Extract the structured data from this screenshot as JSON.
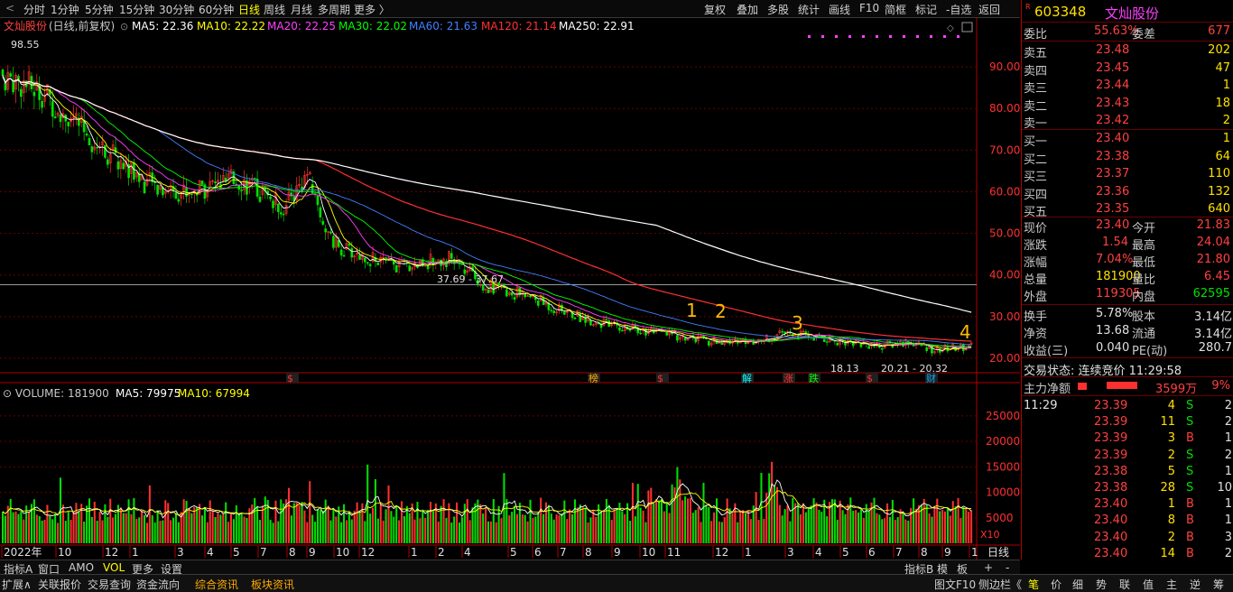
{
  "topbar": {
    "nav_left": "<",
    "periods": [
      "分时",
      "1分钟",
      "5分钟",
      "15分钟",
      "30分钟",
      "60分钟",
      "日线",
      "周线",
      "月线",
      "多周期",
      "更多 〉"
    ],
    "tools": [
      "复权",
      "叠加",
      "多股",
      "统计",
      "画线",
      "F10",
      "简框",
      "标记",
      "-自选",
      "返回"
    ]
  },
  "chart": {
    "title": "文灿股份",
    "mode": "(日线,前复权)",
    "ma_labels": [
      {
        "t": "MA5: 22.36",
        "c": "#ffffff"
      },
      {
        "t": "MA10: 22.22",
        "c": "#ffff00"
      },
      {
        "t": "MA20: 22.25",
        "c": "#ff40ff"
      },
      {
        "t": "MA30: 22.02",
        "c": "#00ff00"
      },
      {
        "t": "MA60: 21.63",
        "c": "#4080ff"
      },
      {
        "t": "MA120: 21.14",
        "c": "#ff3030"
      },
      {
        "t": "MA250: 22.91",
        "c": "#ffffff"
      }
    ],
    "price_ticks": [
      "90.00",
      "80.00",
      "70.00",
      "60.00",
      "50.00",
      "40.00",
      "30.00",
      "20.00"
    ],
    "high_label": "98.55",
    "low_label": "18.13",
    "range_label": "37.69 - 37.67",
    "range_label2": "20.21 - 20.32",
    "annotations": [
      "1",
      "2",
      "3",
      "4"
    ],
    "event_tags": [
      {
        "t": "$",
        "c": "#ff3030"
      },
      {
        "t": "榜",
        "c": "#ffaa00"
      },
      {
        "t": "$",
        "c": "#ff3030"
      },
      {
        "t": "解",
        "c": "#00ffff"
      },
      {
        "t": "涨",
        "c": "#ff3030"
      },
      {
        "t": "跌",
        "c": "#00ff00"
      },
      {
        "t": "$",
        "c": "#ff3030"
      },
      {
        "t": "财",
        "c": "#00aaff"
      }
    ],
    "volume_label": "VOLUME: 181900",
    "vol_ma5": "MA5: 79975",
    "vol_ma10": "MA10: 67994",
    "vol_ticks": [
      "25000",
      "20000",
      "15000",
      "10000",
      "5000"
    ],
    "vol_unit": "X10",
    "months": [
      "2022年",
      "10",
      "12",
      "1",
      "3",
      "4",
      "5",
      "7",
      "8",
      "9",
      "10",
      "12",
      "1",
      "2",
      "4",
      "5",
      "6",
      "7",
      "8",
      "9",
      "10",
      "11",
      "12",
      "1",
      "3",
      "4",
      "5",
      "6",
      "7",
      "8",
      "9",
      "1"
    ],
    "period_tag": "日线"
  },
  "quote": {
    "code": "603348",
    "name": "文灿股份",
    "ratio_label": "委比",
    "ratio": "55.63%",
    "diff_label": "委差",
    "diff": "677",
    "asks": [
      {
        "n": "卖五",
        "p": "23.48",
        "v": "202"
      },
      {
        "n": "卖四",
        "p": "23.45",
        "v": "47"
      },
      {
        "n": "卖三",
        "p": "23.44",
        "v": "1"
      },
      {
        "n": "卖二",
        "p": "23.43",
        "v": "18"
      },
      {
        "n": "卖一",
        "p": "23.42",
        "v": "2"
      }
    ],
    "bids": [
      {
        "n": "买一",
        "p": "23.40",
        "v": "1"
      },
      {
        "n": "买二",
        "p": "23.38",
        "v": "64"
      },
      {
        "n": "买三",
        "p": "23.37",
        "v": "110"
      },
      {
        "n": "买四",
        "p": "23.36",
        "v": "132"
      },
      {
        "n": "买五",
        "p": "23.35",
        "v": "640"
      }
    ],
    "stats": [
      {
        "a": "现价",
        "b": "23.40",
        "bc": "red",
        "c": "今开",
        "d": "21.83",
        "dc": "red"
      },
      {
        "a": "涨跌",
        "b": "1.54",
        "bc": "red",
        "c": "最高",
        "d": "24.04",
        "dc": "red"
      },
      {
        "a": "涨幅",
        "b": "7.04%",
        "bc": "red",
        "c": "最低",
        "d": "21.80",
        "dc": "red"
      },
      {
        "a": "总量",
        "b": "181900",
        "bc": "yellow",
        "c": "量比",
        "d": "6.45",
        "dc": "red"
      },
      {
        "a": "外盘",
        "b": "119305",
        "bc": "red",
        "c": "内盘",
        "d": "62595",
        "dc": "green"
      }
    ],
    "stats2": [
      {
        "a": "换手",
        "b": "5.78%",
        "c": "股本",
        "d": "3.14亿"
      },
      {
        "a": "净资",
        "b": "13.68",
        "c": "流通",
        "d": "3.14亿"
      },
      {
        "a": "收益(三)",
        "b": "0.040",
        "c": "PE(动)",
        "d": "280.7"
      }
    ],
    "trade_status": "交易状态: 连续竞价 11:29:58",
    "main_flow_label": "主力净额",
    "main_flow": "3599万",
    "main_flow_pct": "9%",
    "ticks": [
      {
        "t": "11:29",
        "p": "23.39",
        "v": "4",
        "s": "S",
        "n": "2"
      },
      {
        "t": "",
        "p": "23.39",
        "v": "11",
        "s": "S",
        "n": "2"
      },
      {
        "t": "",
        "p": "23.39",
        "v": "3",
        "s": "B",
        "n": "1"
      },
      {
        "t": "",
        "p": "23.39",
        "v": "2",
        "s": "S",
        "n": "2"
      },
      {
        "t": "",
        "p": "23.38",
        "v": "5",
        "s": "S",
        "n": "1"
      },
      {
        "t": "",
        "p": "23.38",
        "v": "28",
        "s": "S",
        "n": "10"
      },
      {
        "t": "",
        "p": "23.40",
        "v": "1",
        "s": "B",
        "n": "1"
      },
      {
        "t": "",
        "p": "23.40",
        "v": "8",
        "s": "B",
        "n": "1"
      },
      {
        "t": "",
        "p": "23.40",
        "v": "2",
        "s": "B",
        "n": "3"
      },
      {
        "t": "",
        "p": "23.40",
        "v": "14",
        "s": "B",
        "n": "2"
      }
    ]
  },
  "bottom1": {
    "tabs": [
      "指标A",
      "窗口",
      "AMO",
      "VOL",
      "更多",
      "设置"
    ],
    "right": [
      "指标B",
      "模",
      "板",
      "+",
      "-"
    ]
  },
  "bottom2": {
    "tabs": [
      "扩展∧",
      "关联报价",
      "交易查询",
      "资金流向",
      "综合资讯",
      "板块资讯"
    ],
    "right": [
      "图文F10",
      "侧边栏《",
      "笔",
      "价",
      "细",
      "势",
      "联",
      "值",
      "主",
      "逆",
      "筹"
    ]
  }
}
